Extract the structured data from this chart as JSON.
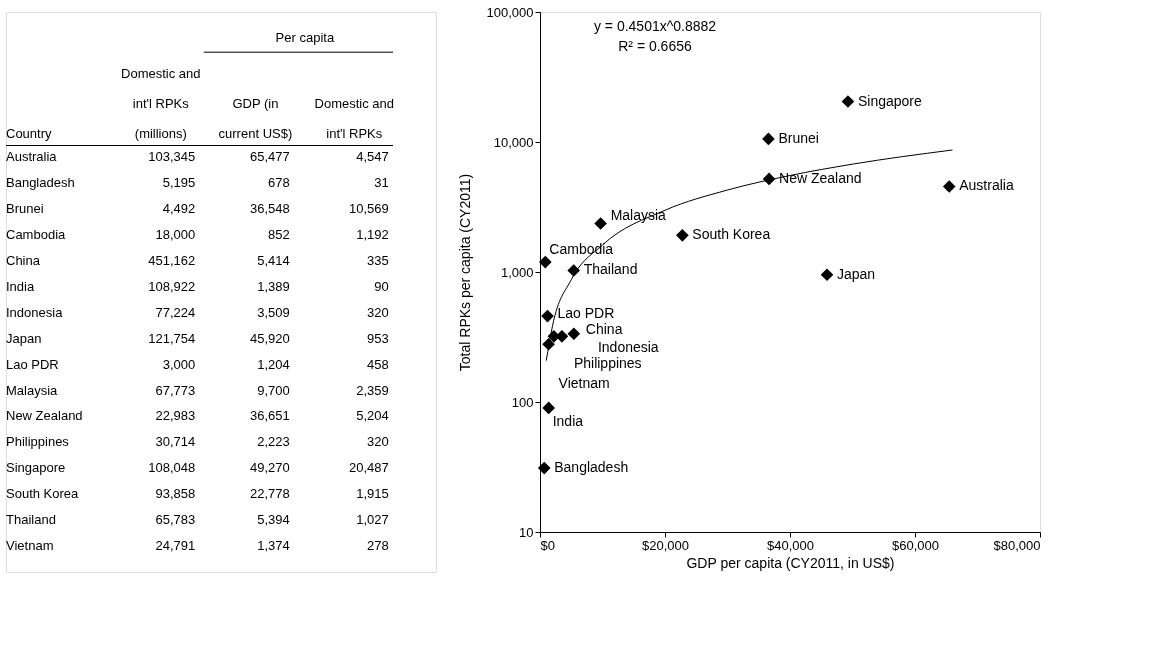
{
  "chart_data": [
    {
      "type": "other",
      "xlabel": "Country",
      "legend_title": "Per capita",
      "categories": [
        "Australia",
        "Bangladesh",
        "Brunei",
        "Cambodia",
        "China",
        "India",
        "Indonesia",
        "Japan",
        "Lao PDR",
        "Malaysia",
        "New Zealand",
        "Philippines",
        "Singapore",
        "South Korea",
        "Thailand",
        "Vietnam"
      ],
      "series": [
        {
          "name": "Domestic and int'l RPKs (millions)",
          "values": [
            103345,
            5195,
            4492,
            18000,
            451162,
            108922,
            77224,
            121754,
            3000,
            67773,
            22983,
            30714,
            108048,
            93858,
            65783,
            24791
          ],
          "value_labels": [
            "103,345",
            "5,195",
            "4,492",
            "18,000",
            "451,162",
            "108,922",
            "77,224",
            "121,754",
            "3,000",
            "67,773",
            "22,983",
            "30,714",
            "108,048",
            "93,858",
            "65,783",
            "24,791"
          ]
        },
        {
          "name": "GDP (in current US$)",
          "values": [
            65477,
            678,
            36548,
            852,
            5414,
            1389,
            3509,
            45920,
            1204,
            9700,
            36651,
            2223,
            49270,
            22778,
            5394,
            1374
          ],
          "value_labels": [
            "65,477",
            "678",
            "36,548",
            "852",
            "5,414",
            "1,389",
            "3,509",
            "45,920",
            "1,204",
            "9,700",
            "36,651",
            "2,223",
            "49,270",
            "22,778",
            "5,394",
            "1,374"
          ]
        },
        {
          "name": "Domestic and int'l RPKs",
          "values": [
            4547,
            31,
            10569,
            1192,
            335,
            90,
            320,
            953,
            458,
            2359,
            5204,
            320,
            20487,
            1915,
            1027,
            278
          ],
          "value_labels": [
            "4,547",
            "31",
            "10,569",
            "1,192",
            "335",
            "90",
            "320",
            "953",
            "458",
            "2,359",
            "5,204",
            "320",
            "20,487",
            "1,915",
            "1,027",
            "278"
          ]
        }
      ]
    },
    {
      "type": "scatter",
      "log": "y",
      "xlabel": "GDP per capita (CY2011, in US$)",
      "ylabel": "Total RPKs per capita (CY2011)",
      "xlim": [
        0,
        80000
      ],
      "xticks": [
        {
          "value": 0,
          "label": "$0"
        },
        {
          "value": 20000,
          "label": "$20,000"
        },
        {
          "value": 40000,
          "label": "$40,000"
        },
        {
          "value": 60000,
          "label": "$60,000"
        },
        {
          "value": 80000,
          "label": "$80,000"
        }
      ],
      "ylim": [
        10,
        100000
      ],
      "yticks": [
        10,
        100,
        {
          "value": 1000,
          "label": "1,000"
        },
        {
          "value": 10000,
          "label": "10,000"
        },
        {
          "value": 100000,
          "label": "100,000"
        }
      ],
      "grid": false,
      "x": [
        65477,
        678,
        36548,
        852,
        5414,
        1389,
        3509,
        45920,
        1204,
        9700,
        36651,
        2223,
        49270,
        22778,
        5394,
        1374
      ],
      "series": [
        {
          "type": "scatter",
          "color": "#000000",
          "marker": "diamond",
          "values": [
            4547,
            31,
            10569,
            1192,
            335,
            90,
            320,
            953,
            458,
            2359,
            5204,
            320,
            20487,
            1915,
            1027,
            278
          ]
        },
        {
          "type": "line",
          "color": "#000000",
          "line_style": "solid",
          "x": [
            1000,
            2000,
            5000,
            10000,
            20000,
            30000,
            40000,
            50000,
            66000
          ],
          "values": [
            208,
            385,
            872,
            1613,
            2985,
            4272,
            5524,
            6754,
            8682
          ]
        }
      ],
      "annotations": [
        {
          "text": "Australia",
          "x": 65477,
          "y": 4547
        },
        {
          "text": "Bangladesh",
          "x": 678,
          "y": 31
        },
        {
          "text": "Brunei",
          "x": 36548,
          "y": 10569
        },
        {
          "text": "Cambodia",
          "x": 852,
          "y": 1192
        },
        {
          "text": "China",
          "x": 5414,
          "y": 335
        },
        {
          "text": "India",
          "x": 1389,
          "y": 90
        },
        {
          "text": "Indonesia",
          "x": 3509,
          "y": 320
        },
        {
          "text": "Japan",
          "x": 45920,
          "y": 953
        },
        {
          "text": "Lao PDR",
          "x": 1204,
          "y": 458
        },
        {
          "text": "Malaysia",
          "x": 9700,
          "y": 2359
        },
        {
          "text": "New Zealand",
          "x": 36651,
          "y": 5204
        },
        {
          "text": "Philippines",
          "x": 2223,
          "y": 320
        },
        {
          "text": "Singapore",
          "x": 49270,
          "y": 20487
        },
        {
          "text": "South Korea",
          "x": 22778,
          "y": 1915
        },
        {
          "text": "Thailand",
          "x": 5394,
          "y": 1027
        },
        {
          "text": "Vietnam",
          "x": 1374,
          "y": 278
        },
        "y = 0.4501x^0.8882",
        "R² = 0.6656"
      ]
    }
  ]
}
